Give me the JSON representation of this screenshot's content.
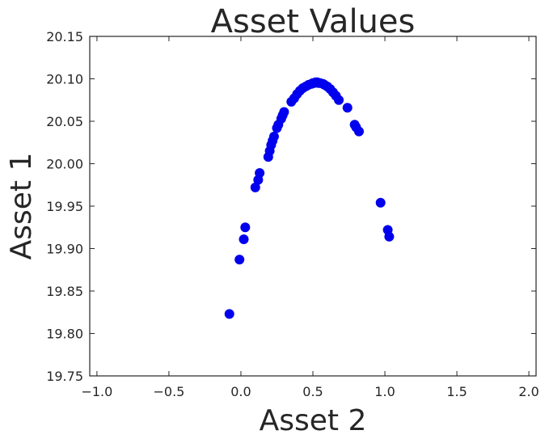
{
  "chart_data": {
    "type": "scatter",
    "title": "Asset Values",
    "xlabel": "Asset 2",
    "ylabel": "Asset 1",
    "xlim": [
      -1.05,
      2.05
    ],
    "ylim": [
      19.75,
      20.15
    ],
    "xticks": [
      -1.0,
      -0.5,
      0.0,
      0.5,
      1.0,
      1.5,
      2.0
    ],
    "xtick_labels": [
      "−1.0",
      "−0.5",
      "0.0",
      "0.5",
      "1.0",
      "1.5",
      "2.0"
    ],
    "yticks": [
      19.75,
      19.8,
      19.85,
      19.9,
      19.95,
      20.0,
      20.05,
      20.1,
      20.15
    ],
    "ytick_labels": [
      "19.75",
      "19.80",
      "19.85",
      "19.90",
      "19.95",
      "20.00",
      "20.05",
      "20.10",
      "20.15"
    ],
    "grid": false,
    "marker_color": "#0000ee",
    "series": [
      {
        "x": [
          -0.08,
          -0.01,
          0.02,
          0.03,
          0.1,
          0.12,
          0.13,
          0.19,
          0.2,
          0.21,
          0.22,
          0.23,
          0.25,
          0.26,
          0.28,
          0.29,
          0.3,
          0.35,
          0.37,
          0.39,
          0.41,
          0.43,
          0.45,
          0.47,
          0.49,
          0.5,
          0.51,
          0.52,
          0.53,
          0.54,
          0.55,
          0.57,
          0.58,
          0.6,
          0.62,
          0.64,
          0.66,
          0.68,
          0.74,
          0.79,
          0.8,
          0.82,
          0.97,
          1.02,
          1.03
        ],
        "y": [
          19.823,
          19.887,
          19.911,
          19.925,
          19.972,
          19.981,
          19.989,
          20.008,
          20.015,
          20.022,
          20.027,
          20.032,
          20.042,
          20.046,
          20.053,
          20.057,
          20.061,
          20.073,
          20.077,
          20.082,
          20.086,
          20.089,
          20.091,
          20.093,
          20.094,
          20.095,
          20.095,
          20.096,
          20.096,
          20.095,
          20.095,
          20.094,
          20.093,
          20.091,
          20.088,
          20.084,
          20.08,
          20.075,
          20.066,
          20.046,
          20.043,
          20.038,
          19.954,
          19.922,
          19.914
        ]
      }
    ]
  }
}
